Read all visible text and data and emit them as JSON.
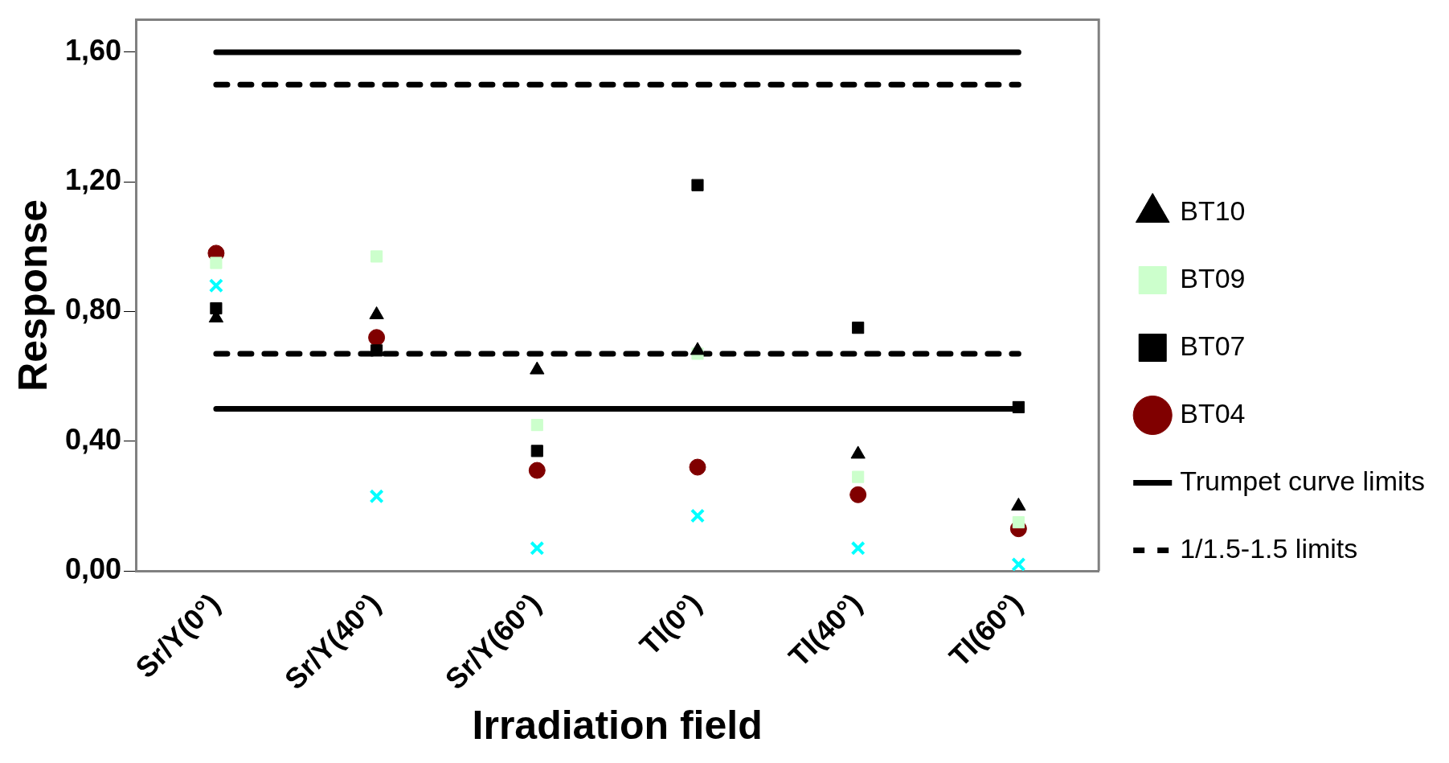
{
  "chart_data": {
    "type": "scatter",
    "xlabel": "Irradiation field",
    "ylabel": "Response",
    "categories": [
      "Sr/Y(0°)",
      "Sr/Y(40°)",
      "Sr/Y(60°)",
      "Tl(0°)",
      "Tl(40°)",
      "Tl(60°)"
    ],
    "ylim": [
      0,
      1.7
    ],
    "yticks": [
      {
        "value": 0,
        "label": "0,00"
      },
      {
        "value": 0.4,
        "label": "0,40"
      },
      {
        "value": 0.8,
        "label": "0,80"
      },
      {
        "value": 1.2,
        "label": "1,20"
      },
      {
        "value": 1.6,
        "label": "1,60"
      }
    ],
    "grid": false,
    "legend": "right",
    "series": [
      {
        "marker": "cross",
        "color": "#00ffff",
        "values": [
          0.88,
          0.23,
          0.07,
          0.17,
          0.07,
          0.02
        ]
      },
      {
        "name": "BT04",
        "marker": "circle",
        "color": "#800000",
        "values": [
          0.98,
          0.72,
          0.31,
          0.32,
          0.235,
          0.13
        ]
      },
      {
        "name": "BT07",
        "marker": "square",
        "color": "#000000",
        "values": [
          0.81,
          0.68,
          0.37,
          1.19,
          0.75,
          0.505
        ]
      },
      {
        "name": "BT09",
        "marker": "square",
        "color": "#ccffcc",
        "values": [
          0.95,
          0.97,
          0.45,
          0.67,
          0.29,
          0.15
        ]
      },
      {
        "name": "BT10",
        "marker": "triangle",
        "color": "#000000",
        "values": [
          0.78,
          0.79,
          0.62,
          0.68,
          0.36,
          0.2
        ]
      },
      {
        "type": "line",
        "name": "Trumpet curve limits",
        "line_style": "solid",
        "color": "#000000",
        "values": [
          1.6,
          1.6,
          1.6,
          1.6,
          1.6,
          1.6
        ]
      },
      {
        "type": "line",
        "line_style": "solid",
        "color": "#000000",
        "values": [
          0.5,
          0.5,
          0.5,
          0.5,
          0.5,
          0.5
        ]
      },
      {
        "type": "line",
        "name": "1/1.5-1.5 limits",
        "line_style": "dashed",
        "color": "#000000",
        "values": [
          1.5,
          1.5,
          1.5,
          1.5,
          1.5,
          1.5
        ]
      },
      {
        "type": "line",
        "line_style": "dashed",
        "color": "#000000",
        "values": [
          0.67,
          0.67,
          0.67,
          0.67,
          0.67,
          0.67
        ]
      }
    ]
  }
}
